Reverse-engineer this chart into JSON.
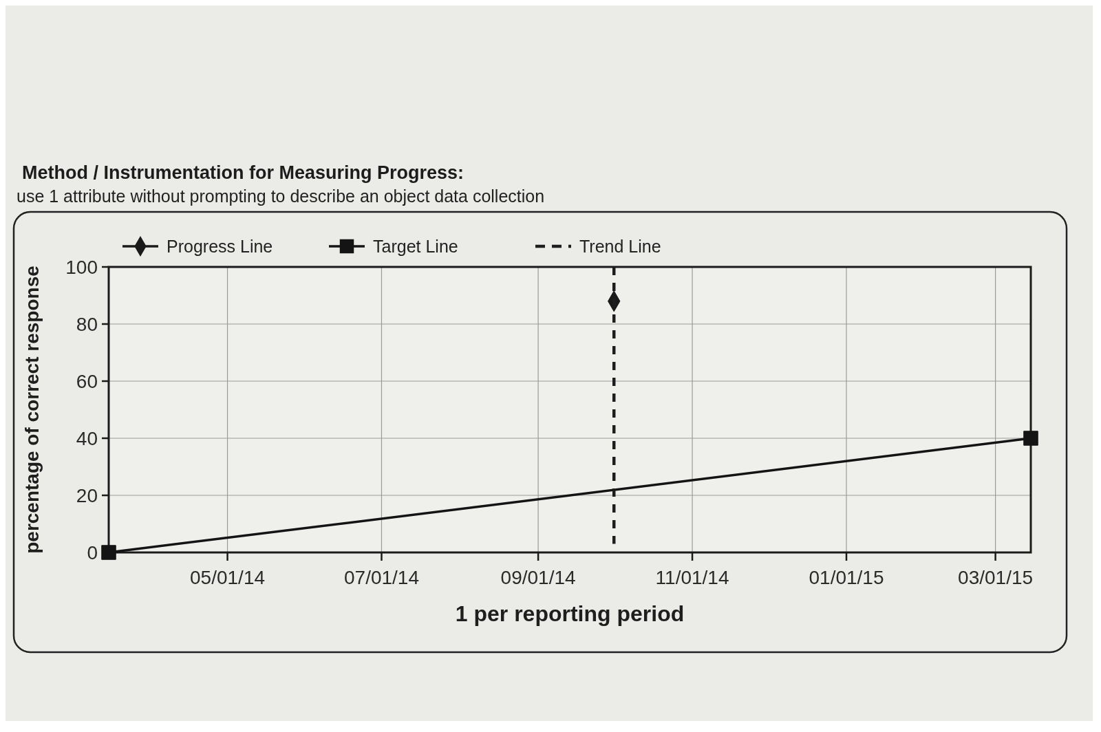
{
  "chart_data": {
    "type": "line",
    "title": "Method / Instrumentation for Measuring Progress:",
    "subtitle": "use 1 attribute without prompting to describe an object data collection",
    "xlabel": "1 per reporting period",
    "ylabel": "percentage of correct response",
    "xlim": [
      "2014-03-15",
      "2015-03-15"
    ],
    "xticks": [
      {
        "value": "2014-05-01",
        "label": "05/01/14"
      },
      {
        "value": "2014-07-01",
        "label": "07/01/14"
      },
      {
        "value": "2014-09-01",
        "label": "09/01/14"
      },
      {
        "value": "2014-11-01",
        "label": "11/01/14"
      },
      {
        "value": "2015-01-01",
        "label": "01/01/15"
      },
      {
        "value": "2015-03-01",
        "label": "03/01/15"
      }
    ],
    "ylim": [
      0,
      100
    ],
    "yticks": [
      0,
      20,
      40,
      60,
      80,
      100
    ],
    "grid": true,
    "legend": "top",
    "series": [
      {
        "name": "Progress Line",
        "type": "line",
        "color": "#1a1a1a",
        "marker": "diamond",
        "x": [
          "2014-10-01"
        ],
        "values": [
          88
        ]
      },
      {
        "name": "Target Line",
        "type": "line",
        "color": "#141414",
        "marker": "square",
        "x": [
          "2014-03-15",
          "2015-03-15"
        ],
        "values": [
          0,
          40
        ]
      },
      {
        "name": "Trend Line",
        "type": "line",
        "color": "#1e1e1e",
        "marker": "none",
        "line_style": "dashed",
        "x": [
          "2014-10-01",
          "2014-10-01"
        ],
        "values": [
          100,
          3
        ]
      }
    ]
  }
}
